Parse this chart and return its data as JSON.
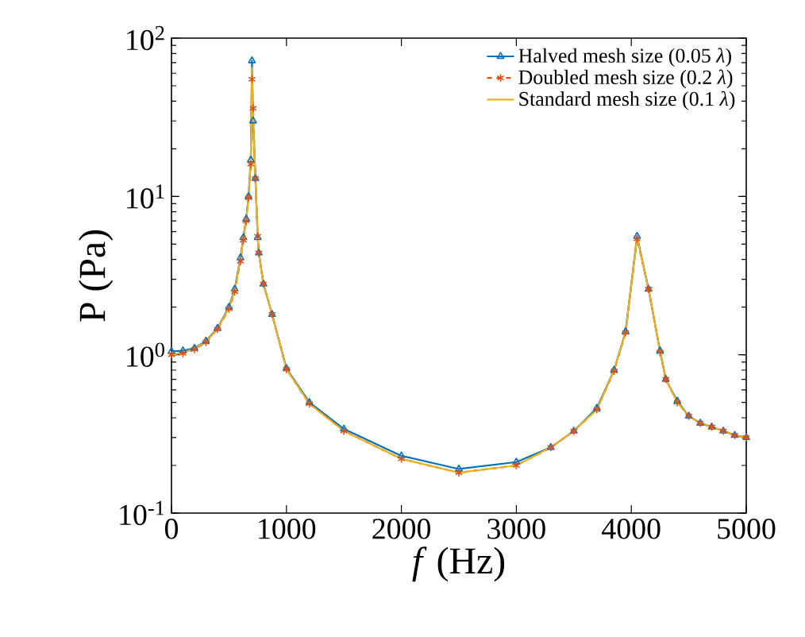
{
  "chart_data": {
    "type": "line",
    "xlabel": "*f* (Hz)",
    "ylabel": "P (Pa)",
    "log": "y",
    "legend": "top right",
    "xlim": [
      0,
      5000
    ],
    "ylim": [
      0.1,
      100
    ],
    "xticks": [
      0,
      1000,
      2000,
      3000,
      4000,
      5000
    ],
    "yticks": [
      {
        "value": 0.1,
        "label": "10$^{-1}$"
      },
      {
        "value": 1,
        "label": "10$^{0}$"
      },
      {
        "value": 10,
        "label": "10$^{1}$"
      },
      {
        "value": 100,
        "label": "10$^{2}$"
      }
    ],
    "x": [
      0,
      100,
      200,
      300,
      400,
      500,
      550,
      600,
      625,
      650,
      670,
      690,
      700,
      710,
      730,
      750,
      760,
      800,
      875,
      1000,
      1200,
      1500,
      2000,
      2500,
      3000,
      3300,
      3500,
      3700,
      3850,
      3950,
      4050,
      4150,
      4250,
      4300,
      4400,
      4500,
      4600,
      4700,
      4800,
      4900,
      5000
    ],
    "series": [
      {
        "name": "Halved mesh size (0.05 *λ*)",
        "color": "#0072bd",
        "marker": "triangle",
        "line_style": "solid",
        "values": [
          1.05,
          1.06,
          1.1,
          1.22,
          1.47,
          2.0,
          2.6,
          4.1,
          5.5,
          7.2,
          10,
          17,
          72,
          30,
          13,
          5.5,
          4.4,
          2.8,
          1.8,
          0.82,
          0.5,
          0.34,
          0.23,
          0.19,
          0.21,
          0.26,
          0.33,
          0.46,
          0.8,
          1.4,
          5.6,
          2.6,
          1.06,
          0.7,
          0.51,
          0.41,
          0.37,
          0.35,
          0.33,
          0.31,
          0.3
        ]
      },
      {
        "name": "Doubled mesh size (0.2 *λ*)",
        "color": "#d95319",
        "marker": "cross",
        "line_style": "dashed",
        "values": [
          1.0,
          1.02,
          1.08,
          1.2,
          1.45,
          1.95,
          2.5,
          3.9,
          5.3,
          7.0,
          9.8,
          16,
          55,
          36,
          13,
          5.6,
          4.4,
          2.8,
          1.8,
          0.81,
          0.49,
          0.33,
          0.22,
          0.18,
          0.2,
          0.26,
          0.33,
          0.45,
          0.79,
          1.38,
          5.4,
          2.6,
          1.04,
          0.7,
          0.5,
          0.41,
          0.37,
          0.35,
          0.33,
          0.31,
          0.3
        ]
      },
      {
        "name": "Standard mesh size (0.1 *λ*)",
        "color": "#edb120",
        "marker": "none",
        "line_style": "solid",
        "values": [
          1.0,
          1.03,
          1.09,
          1.21,
          1.46,
          1.97,
          2.55,
          4.0,
          5.4,
          7.1,
          9.9,
          16.5,
          65,
          33,
          13,
          5.5,
          4.4,
          2.8,
          1.8,
          0.81,
          0.49,
          0.33,
          0.22,
          0.18,
          0.2,
          0.26,
          0.33,
          0.45,
          0.8,
          1.39,
          5.5,
          2.6,
          1.05,
          0.7,
          0.5,
          0.41,
          0.37,
          0.35,
          0.33,
          0.31,
          0.3
        ]
      }
    ]
  }
}
